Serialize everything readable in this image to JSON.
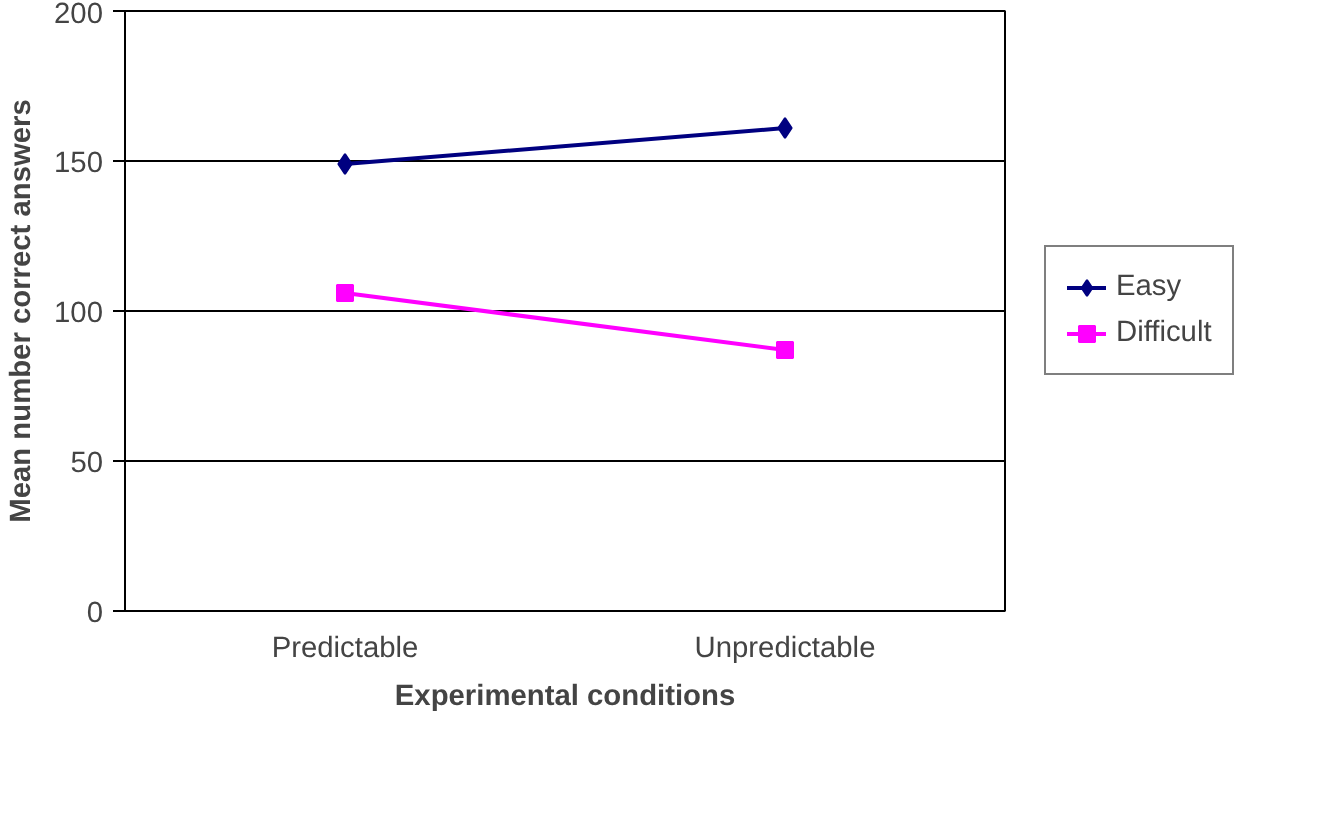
{
  "chart_data": {
    "type": "line",
    "xlabel": "Experimental conditions",
    "ylabel": "Mean number correct answers",
    "categories": [
      "Predictable",
      "Unpredictable"
    ],
    "series": [
      {
        "name": "Easy",
        "color": "#000080",
        "values": [
          149,
          161
        ],
        "marker": "diamond"
      },
      {
        "name": "Difficult",
        "color": "#ff00ff",
        "values": [
          106,
          87
        ],
        "marker": "square"
      }
    ],
    "ylim": [
      0,
      200
    ],
    "yticks": [
      0,
      50,
      100,
      150,
      200
    ],
    "grid": "y",
    "legend": "right"
  }
}
